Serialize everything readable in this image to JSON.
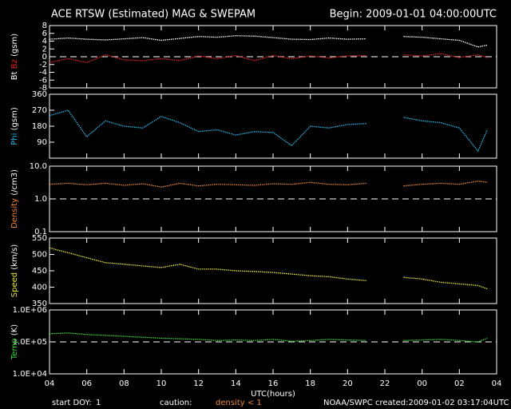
{
  "header": {
    "title": "ACE RTSW (Estimated) MAG & SWEPAM",
    "begin": "Begin: 2009-01-01 04:00:00UTC"
  },
  "footer": {
    "doy_label": "start DOY:",
    "doy": "1",
    "caution": "caution:",
    "caution_note": "density < 1",
    "agency": "NOAA/SWPC",
    "created": "created:2009-01-02 03:17:04UTC"
  },
  "chart_data": [
    {
      "type": "line",
      "y_label": "(gsm)",
      "ylim": [
        -8,
        8
      ],
      "yticks": [
        -8,
        -6,
        -4,
        -2,
        0,
        2,
        4,
        6,
        8
      ],
      "ref_line": 0,
      "x": [
        4,
        5,
        6,
        7,
        8,
        9,
        10,
        11,
        12,
        13,
        14,
        15,
        16,
        17,
        18,
        19,
        20,
        21,
        22,
        23,
        24,
        25,
        26,
        27,
        27.5
      ],
      "series": [
        {
          "name": "Bt",
          "color": "#ffffff",
          "values": [
            4.5,
            4.8,
            4.5,
            4.3,
            4.6,
            4.9,
            4.2,
            4.7,
            5.2,
            5.0,
            5.4,
            5.3,
            4.9,
            4.5,
            4.4,
            4.8,
            4.5,
            4.6,
            null,
            5.2,
            5.0,
            4.6,
            4.2,
            2.5,
            3.0
          ]
        },
        {
          "name": "Bz",
          "color": "#e02020",
          "values": [
            -1.5,
            -0.5,
            -1.5,
            0.5,
            -0.8,
            -1.0,
            -0.5,
            -1.0,
            0.2,
            -0.5,
            0.3,
            -1.0,
            0.3,
            -0.5,
            0.2,
            -0.3,
            0.2,
            0.3,
            null,
            0.5,
            0.2,
            0.8,
            -0.2,
            0.5,
            -0.2
          ]
        }
      ]
    },
    {
      "type": "line",
      "y_label": "(gsm)",
      "ylim": [
        0,
        360
      ],
      "yticks": [
        90,
        180,
        270,
        360
      ],
      "x": [
        4,
        5,
        6,
        7,
        8,
        9,
        10,
        11,
        12,
        13,
        14,
        15,
        16,
        17,
        18,
        19,
        20,
        21,
        22,
        23,
        24,
        25,
        26,
        27,
        27.5
      ],
      "series": [
        {
          "name": "Phi",
          "color": "#29b5e8",
          "values": [
            240,
            270,
            120,
            210,
            180,
            170,
            235,
            200,
            150,
            160,
            130,
            150,
            145,
            70,
            180,
            170,
            190,
            195,
            null,
            230,
            210,
            200,
            170,
            40,
            160
          ]
        }
      ]
    },
    {
      "type": "line",
      "y_label": "(/cm3)",
      "log": true,
      "ylim": [
        0.1,
        10
      ],
      "yticks": [
        0.1,
        {
          "value": 1,
          "label": "1.0"
        },
        {
          "value": 10,
          "label": "10.0"
        }
      ],
      "ref_line": 1,
      "x": [
        4,
        5,
        6,
        7,
        8,
        9,
        10,
        11,
        12,
        13,
        14,
        15,
        16,
        17,
        18,
        19,
        20,
        21,
        22,
        23,
        24,
        25,
        26,
        27,
        27.5
      ],
      "series": [
        {
          "name": "Density",
          "color": "#e8853a",
          "values": [
            2.8,
            3.0,
            2.7,
            3.0,
            2.6,
            2.9,
            2.3,
            3.0,
            2.5,
            2.8,
            2.7,
            2.6,
            2.9,
            2.8,
            3.2,
            2.8,
            2.7,
            3.0,
            null,
            2.5,
            2.8,
            3.0,
            2.8,
            3.5,
            3.2
          ]
        }
      ]
    },
    {
      "type": "line",
      "y_label": "(km/s)",
      "ylim": [
        350,
        550
      ],
      "yticks": [
        350,
        400,
        450,
        500,
        550
      ],
      "x": [
        4,
        5,
        6,
        7,
        8,
        9,
        10,
        11,
        12,
        13,
        14,
        15,
        16,
        17,
        18,
        19,
        20,
        21,
        22,
        23,
        24,
        25,
        26,
        27,
        27.5
      ],
      "series": [
        {
          "name": "Speed",
          "color": "#e8e83a",
          "values": [
            520,
            505,
            490,
            475,
            470,
            465,
            460,
            470,
            455,
            455,
            450,
            448,
            445,
            440,
            435,
            432,
            425,
            420,
            null,
            430,
            425,
            415,
            410,
            405,
            395
          ]
        }
      ]
    },
    {
      "type": "line",
      "y_label": "(K)",
      "log": true,
      "ylim": [
        10000,
        1000000
      ],
      "yticks": [
        {
          "value": 10000,
          "label": "1.0E+04"
        },
        {
          "value": 100000,
          "label": "1.0E+05"
        },
        {
          "value": 1000000,
          "label": "1.0E+06"
        }
      ],
      "ref_line": 100000,
      "x": [
        4,
        5,
        6,
        7,
        8,
        9,
        10,
        11,
        12,
        13,
        14,
        15,
        16,
        17,
        18,
        19,
        20,
        21,
        22,
        23,
        24,
        25,
        26,
        27,
        27.5
      ],
      "x_label": "UTC(hours)",
      "xlim": [
        4,
        28
      ],
      "xticks": [
        {
          "value": 4,
          "label": "04"
        },
        {
          "value": 6,
          "label": "06"
        },
        {
          "value": 8,
          "label": "08"
        },
        10,
        12,
        14,
        16,
        18,
        20,
        22,
        {
          "value": 24,
          "label": "00"
        },
        {
          "value": 26,
          "label": "02"
        },
        {
          "value": 28,
          "label": "04"
        }
      ],
      "series": [
        {
          "name": "Temp",
          "color": "#3ad83a",
          "values": [
            180000,
            190000,
            170000,
            160000,
            150000,
            140000,
            130000,
            125000,
            120000,
            110000,
            115000,
            110000,
            120000,
            105000,
            110000,
            120000,
            115000,
            110000,
            null,
            110000,
            115000,
            120000,
            110000,
            100000,
            130000
          ]
        }
      ]
    }
  ]
}
